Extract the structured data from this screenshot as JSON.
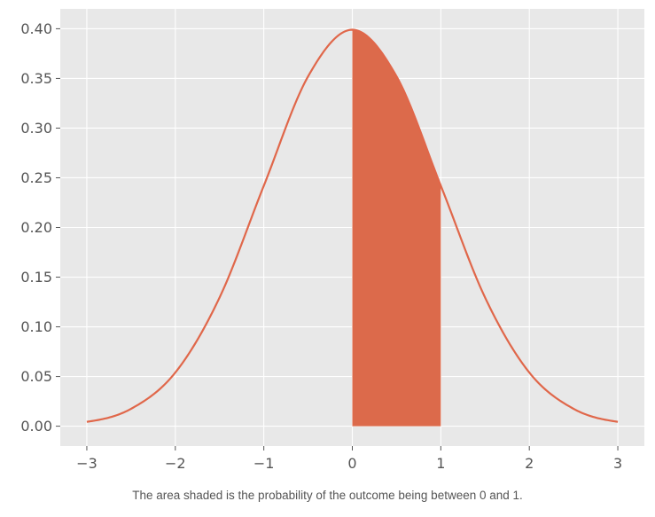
{
  "chart_data": {
    "type": "area",
    "title": "",
    "xlabel": "",
    "ylabel": "",
    "xlim": [
      -3.3,
      3.3
    ],
    "ylim": [
      -0.02,
      0.42
    ],
    "x_ticks": [
      -3,
      -2,
      -1,
      0,
      1,
      2,
      3
    ],
    "x_tick_labels": [
      "−3",
      "−2",
      "−1",
      "0",
      "1",
      "2",
      "3"
    ],
    "y_ticks": [
      0.0,
      0.05,
      0.1,
      0.15,
      0.2,
      0.25,
      0.3,
      0.35,
      0.4
    ],
    "y_tick_labels": [
      "0.00",
      "0.05",
      "0.10",
      "0.15",
      "0.20",
      "0.25",
      "0.30",
      "0.35",
      "0.40"
    ],
    "grid": true,
    "series": [
      {
        "x": [
          -3.0,
          -2.5,
          -2.0,
          -1.5,
          -1.0,
          -0.5,
          0.0,
          0.5,
          1.0,
          1.5,
          2.0,
          2.5,
          3.0
        ],
        "values": [
          0.0044,
          0.0175,
          0.054,
          0.1295,
          0.242,
          0.352,
          0.399,
          0.352,
          0.242,
          0.1295,
          0.054,
          0.0175,
          0.0044
        ]
      }
    ],
    "shaded_region": {
      "x_from": 0,
      "x_to": 1
    },
    "colors": {
      "curve": "#e0674a",
      "fill": "#dc6a4b",
      "plot_background": "#e8e8e8",
      "grid": "#ffffff"
    }
  },
  "caption": "The area shaded is the probability of the outcome being between 0 and 1."
}
